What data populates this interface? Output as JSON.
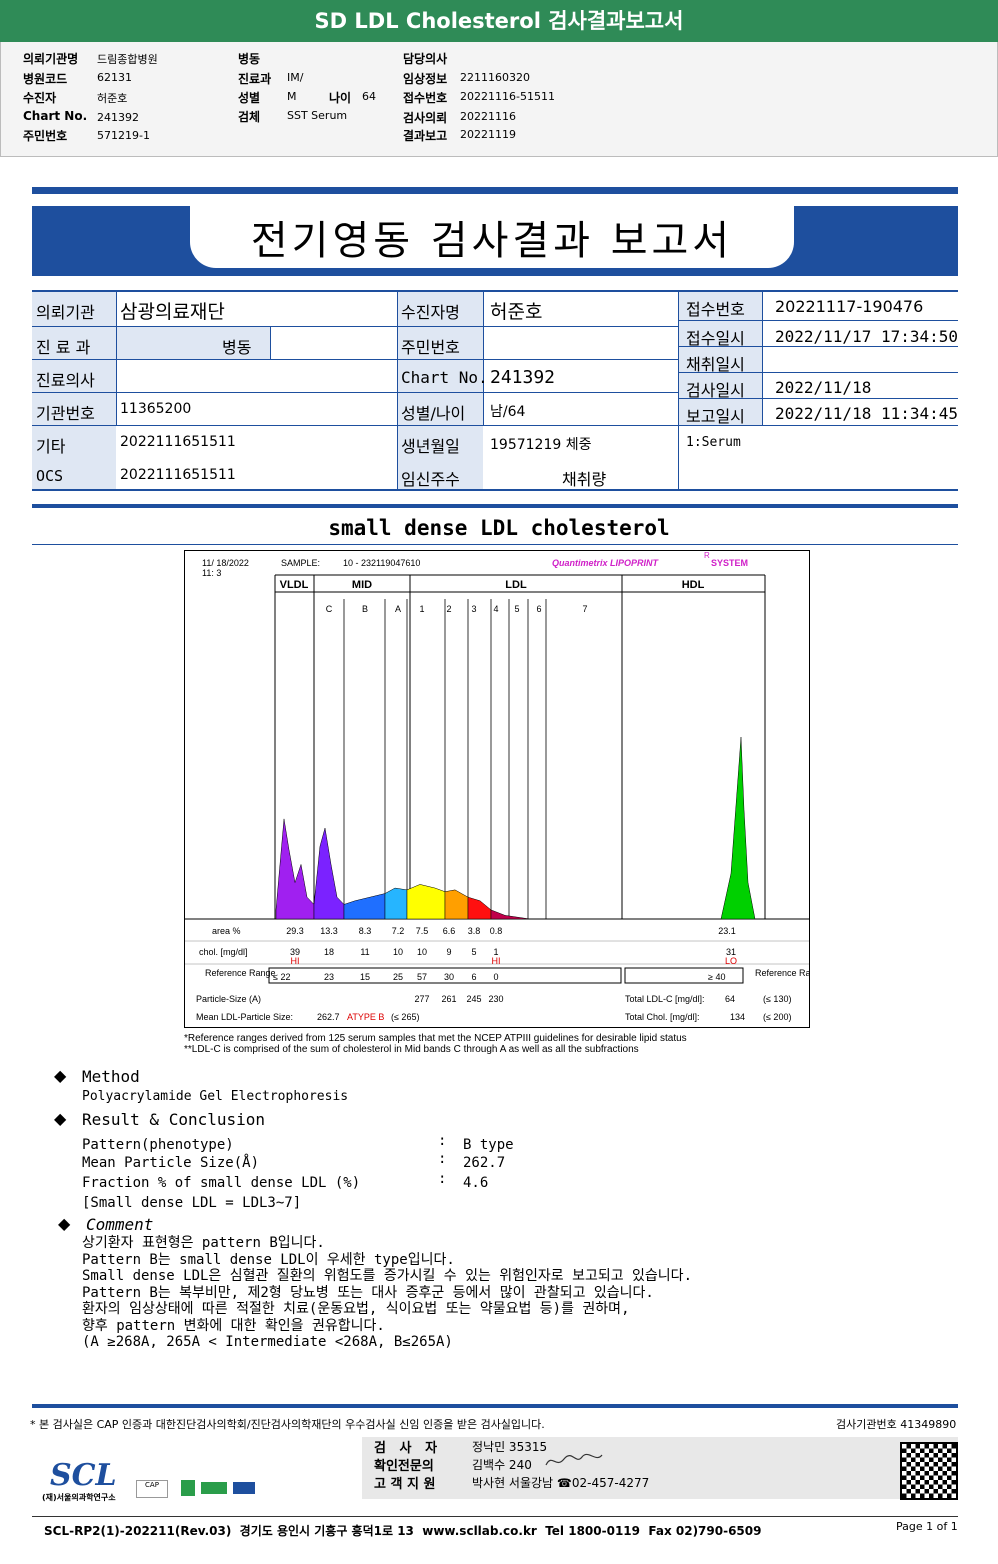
{
  "top_bar": {
    "title": "SD LDL Cholesterol 검사결과보고서"
  },
  "header": {
    "col1": [
      {
        "label": "의뢰기관명",
        "value": "드림종합병원"
      },
      {
        "label": "병원코드",
        "value": "62131"
      },
      {
        "label": "수진자",
        "value": "허준호"
      },
      {
        "label": "Chart No.",
        "value": "241392"
      },
      {
        "label": "주민번호",
        "value": "571219-1"
      }
    ],
    "col2": [
      {
        "label": "병동",
        "value": ""
      },
      {
        "label": "진료과",
        "value": "IM/"
      },
      {
        "label": "성별",
        "value": "M"
      },
      {
        "label": "검체",
        "value": "SST Serum"
      }
    ],
    "age_label": "나이",
    "age_value": "64",
    "col3": [
      {
        "label": "담당의사",
        "value": ""
      },
      {
        "label": "임상정보",
        "value": "2211160320"
      },
      {
        "label": "접수번호",
        "value": "20221116-51511"
      },
      {
        "label": "검사의뢰",
        "value": "20221116"
      },
      {
        "label": "결과보고",
        "value": "20221119"
      }
    ]
  },
  "report_title": "전기영동 검사결과 보고서",
  "grid": {
    "r1": {
      "l1": "의뢰기관",
      "v1": "삼광의료재단",
      "l2": "수진자명",
      "v2": "허준호",
      "l3": "접수번호",
      "v3": "20221117-190476"
    },
    "r2": {
      "l1": "진 료 과",
      "v1": "병동",
      "l2": "주민번호",
      "v2": "",
      "l3": "접수일시",
      "v3": "2022/11/17 17:34:50"
    },
    "r2b": {
      "l3": "채취일시",
      "v3": ""
    },
    "r3": {
      "l1": "진료의사",
      "v1": "",
      "l2": "Chart No.",
      "v2": "241392",
      "l3": "검사일시",
      "v3": "2022/11/18"
    },
    "r4": {
      "l1": "기관번호",
      "v1": "11365200",
      "l2": "성별/나이",
      "v2": "남/64",
      "l3": "보고일시",
      "v3": "2022/11/18 11:34:45"
    },
    "r5": {
      "l1": "기타",
      "v1": "2022111651511",
      "l2": "생년월일",
      "v2": "19571219 체중",
      "l3": "1:Serum"
    },
    "r6": {
      "l1": "OCS",
      "v1": "2022111651511",
      "l2": "임신주수",
      "v2": "채취량"
    }
  },
  "section_title": "small dense LDL cholesterol",
  "chart_data": {
    "type": "area",
    "header": {
      "date": "11/ 18/2022",
      "time": "11:  3",
      "sample_label": "SAMPLE:",
      "sample": "10 - 232119047610",
      "brand": "Quantimetrix LIPOPRINT",
      "brand_mark": "R",
      "brand_suffix": "SYSTEM"
    },
    "groups": [
      "VLDL",
      "MID",
      "LDL",
      "HDL"
    ],
    "bands": [
      "C",
      "B",
      "A",
      "1",
      "2",
      "3",
      "4",
      "5",
      "6",
      "7"
    ],
    "rows": {
      "area_label": "area %",
      "area": [
        "29.3",
        "13.3",
        "8.3",
        "7.2",
        "7.5",
        "6.6",
        "3.8",
        "0.8"
      ],
      "hdl_area": "23.1",
      "chol_label": "chol. [mg/dl]",
      "chol": [
        "39",
        "18",
        "11",
        "10",
        "10",
        "9",
        "5",
        "1"
      ],
      "hdl_chol": "31",
      "flags": {
        "vldl": "HI",
        "ldl4": "HI",
        "hdl": "LO"
      },
      "ref_label": "Reference Range",
      "ref_left": "≤ 22",
      "ref": [
        "23",
        "15",
        "25",
        "57",
        "30",
        "6",
        "0"
      ],
      "ref_hdl": "≥  40",
      "ref_right_label": "Reference Range",
      "particle_label": "Particle-Size  (A)",
      "particle": [
        "277",
        "261",
        "245",
        "230"
      ],
      "mean_label": "Mean LDL-Particle Size:",
      "mean_value": "262.7",
      "mean_type": "ATYPE B",
      "mean_ref": "(≤ 265)",
      "total_ldl_label": "Total LDL-C [mg/dl]:",
      "total_ldl": "64",
      "total_ldl_ref": "(≤ 130)",
      "total_chol_label": "Total Chol. [mg/dl]:",
      "total_chol": "134",
      "total_chol_ref": "(≤ 200)"
    },
    "peaks": [
      {
        "band": "VLDL",
        "color": "#a020f0",
        "height": 0.55
      },
      {
        "band": "MID-C",
        "color": "#7b22ff",
        "height": 0.5
      },
      {
        "band": "MID-B",
        "color": "#1f6fff",
        "height": 0.15
      },
      {
        "band": "MID-A",
        "color": "#26b5ff",
        "height": 0.17
      },
      {
        "band": "LDL1",
        "color": "#ffff00",
        "height": 0.18
      },
      {
        "band": "LDL2",
        "color": "#ff9f00",
        "height": 0.16
      },
      {
        "band": "LDL3",
        "color": "#ff1010",
        "height": 0.11
      },
      {
        "band": "LDL4",
        "color": "#c0004a",
        "height": 0.02
      },
      {
        "band": "HDL",
        "color": "#00d000",
        "height": 1.0
      }
    ],
    "footnote1": "*Reference ranges derived from 125 serum samples that met the NCEP ATPIII guidelines for desirable lipid status",
    "footnote2": "**LDL-C is comprised of the sum of cholesterol in Mid bands C through A as well as all the subfractions"
  },
  "method": {
    "title": "Method",
    "text": "Polyacrylamide Gel Electrophoresis"
  },
  "result": {
    "title": "Result & Conclusion",
    "rows": [
      {
        "label": "Pattern(phenotype)",
        "sep": ":",
        "value": "B type"
      },
      {
        "label": "Mean Particle Size(Å)",
        "sep": ":",
        "value": "262.7"
      },
      {
        "label": "Fraction % of small dense LDL (%)",
        "sep": ":",
        "value": "4.6"
      }
    ],
    "note": "[Small dense LDL = LDL3~7]"
  },
  "comment": {
    "title": "Comment",
    "lines": [
      "상기환자 표현형은 pattern B입니다.",
      "Pattern B는 small dense LDL이 우세한 type입니다.",
      "Small dense LDL은 심혈관 질환의 위험도를 증가시킬 수 있는 위험인자로 보고되고 있습니다.",
      "Pattern B는 복부비만, 제2형 당뇨병 또는 대사 증후군 등에서 많이 관찰되고 있습니다.",
      "환자의 임상상태에 따른 적절한 치료(운동요법, 식이요법 또는 약물요법 등)를 권하며,",
      "향후 pattern 변화에 대한 확인을 권유합니다.",
      "(A ≥268A, 265A < Intermediate <268A, B≤265A)"
    ]
  },
  "footer": {
    "cert_note": "* 본 검사실은 CAP 인증과 대한진단검사의학회/진단검사의학재단의 우수검사실 신임 인증을 받은 검사실입니다.",
    "lab_no": "검사기관번호 41349890",
    "sig": [
      {
        "label": "검   사   자",
        "value": "정낙민 35315"
      },
      {
        "label": "확인전문의",
        "value": "김백수 240"
      },
      {
        "label": "고 객 지 원",
        "value": "박사현 서울강남 ☎02-457-4277"
      }
    ],
    "logo": "SCL",
    "logo_sub": "(재)서울의과학연구소",
    "address": "SCL-RP2(1)-202211(Rev.03)  경기도 용인시 기흥구 흥덕1로 13  www.scllab.co.kr  Tel 1800-0119  Fax 02)790-6509",
    "page": "Page 1 of 1"
  }
}
